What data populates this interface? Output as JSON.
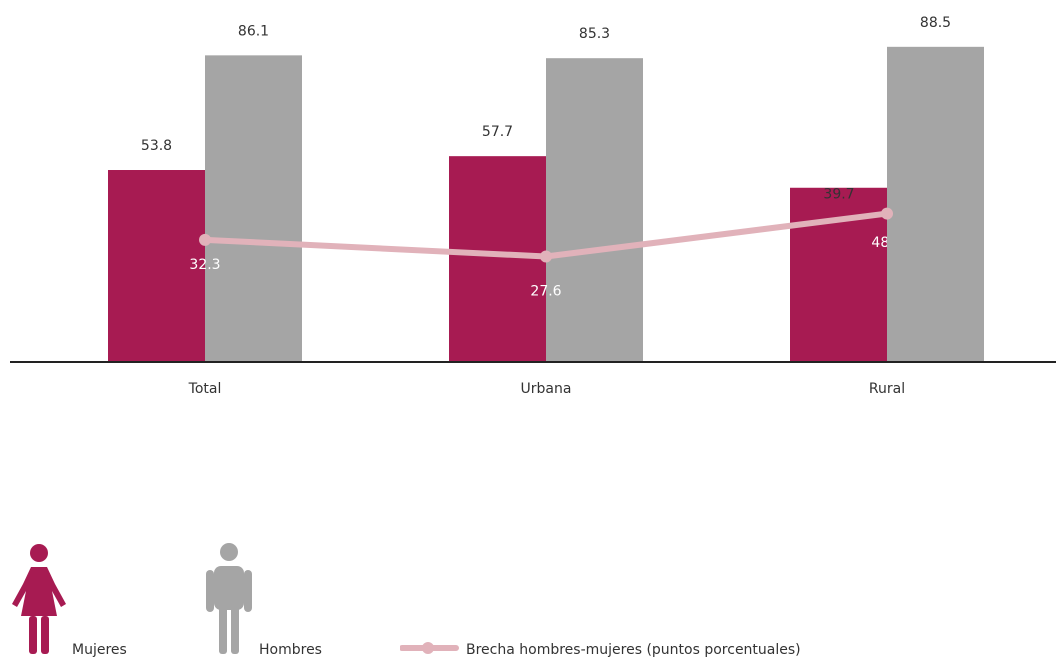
{
  "chart_data": {
    "type": "bar",
    "categories": [
      "Total",
      "Urbana",
      "Rural"
    ],
    "series": [
      {
        "name": "Mujeres",
        "values": [
          53.8,
          57.7,
          48.8
        ],
        "color": "#A71B52"
      },
      {
        "name": "Hombres",
        "values": [
          86.1,
          85.3,
          88.5
        ],
        "color": "#A5A5A5"
      }
    ],
    "line_series": {
      "name": "Brecha hombres-mujeres (puntos porcentuales)",
      "values": [
        32.3,
        27.6,
        39.7
      ],
      "color": "#E1B2BA"
    },
    "ylim": [
      0,
      100
    ],
    "grid": false,
    "legend_position": "bottom"
  },
  "legend": {
    "mujeres": {
      "label": "Mujeres",
      "icon": "woman-icon"
    },
    "hombres": {
      "label": "Hombres",
      "icon": "man-icon"
    },
    "brecha": {
      "label": "Brecha hombres-mujeres (puntos porcentuales)",
      "icon": "line-marker-icon"
    }
  }
}
